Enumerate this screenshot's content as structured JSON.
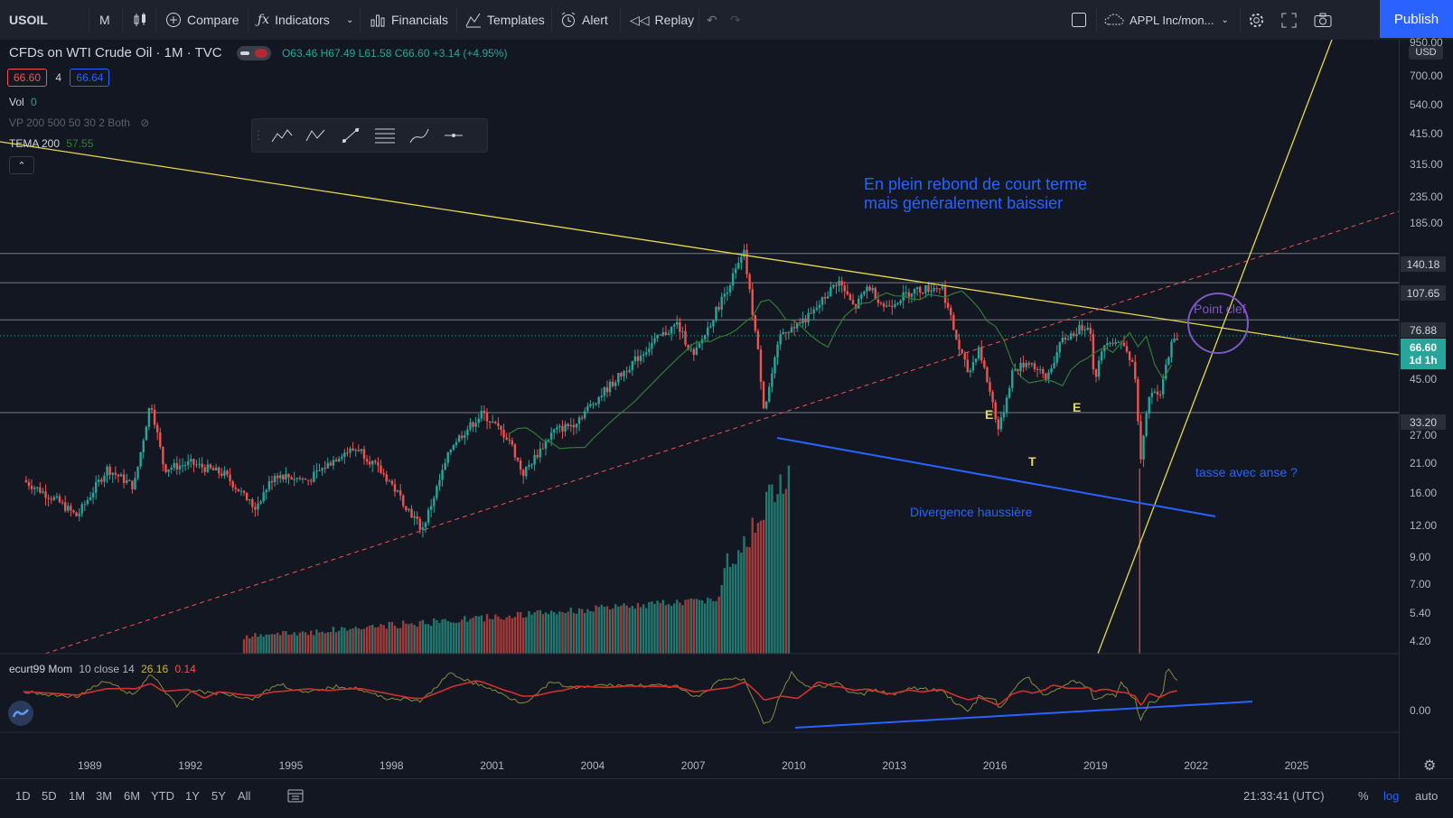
{
  "toolbar": {
    "symbol": "USOIL",
    "interval": "M",
    "compare_label": "Compare",
    "indicators_label": "Indicators",
    "financials_label": "Financials",
    "templates_label": "Templates",
    "alert_label": "Alert",
    "replay_label": "Replay",
    "layout_name": "APPL Inc/mon...",
    "publish_label": "Publish"
  },
  "legend": {
    "title": "CFDs on WTI Crude Oil · 1M · TVC",
    "ohlc": "O63.46 H67.49 L61.58 C66.60 +3.14 (+4.95%)",
    "sell_price": "66.60",
    "spread": "4",
    "buy_price": "66.64",
    "vol_label": "Vol",
    "vol_value": "0",
    "vp_label": "VP 200 500 50 30 2 Both",
    "tema_label": "TEMA 200",
    "tema_value": "57.55"
  },
  "annotations": {
    "headline_1": "En plein rebond de court terme",
    "headline_2": "mais généralement baissier",
    "point_clef": "Point clef",
    "tasse": "tasse avec anse ?",
    "divergence": "Divergence haussière",
    "e1": "E",
    "t": "T",
    "e2": "E"
  },
  "price_axis": {
    "currency": "USD",
    "ticks": [
      "950.00",
      "700.00",
      "540.00",
      "415.00",
      "315.00",
      "235.00",
      "185.00",
      "45.00",
      "27.00",
      "21.00",
      "16.00",
      "12.00",
      "9.00",
      "7.00",
      "5.40",
      "4.20"
    ],
    "level_tags": [
      "140.18",
      "107.65",
      "76.88",
      "33.20"
    ],
    "current_price": "66.60",
    "countdown": "1d 1h",
    "osc_zero": "0.00"
  },
  "oscillator": {
    "label": "ecurt99 Mom",
    "params": "10 close 14",
    "value1": "26.16",
    "value2": "0.14"
  },
  "time_axis": [
    "1989",
    "1992",
    "1995",
    "1998",
    "2001",
    "2004",
    "2007",
    "2010",
    "2013",
    "2016",
    "2019",
    "2022",
    "2025"
  ],
  "bottom": {
    "timeframes": [
      "1D",
      "5D",
      "1M",
      "3M",
      "6M",
      "YTD",
      "1Y",
      "5Y",
      "All"
    ],
    "clock": "21:33:41 (UTC)",
    "percent": "%",
    "log": "log",
    "auto": "auto"
  },
  "colors": {
    "bg": "#131722",
    "panel": "#1e222d",
    "accent": "#2962ff",
    "up": "#26a69a",
    "down": "#ef5350",
    "trend_yellow": "#e7d84c",
    "annotation_blue": "#2962ff",
    "circle_purple": "#7e57c2",
    "tema_green": "#2e7d32"
  },
  "chart_data": {
    "type": "candlestick",
    "symbol": "USOIL",
    "interval": "1M",
    "y_scale": "log",
    "key_levels": [
      140.18,
      107.65,
      76.88,
      33.2
    ],
    "last_close": 66.6,
    "x_range": [
      "1987",
      "2026"
    ],
    "y_range": [
      3.5,
      1000
    ]
  }
}
